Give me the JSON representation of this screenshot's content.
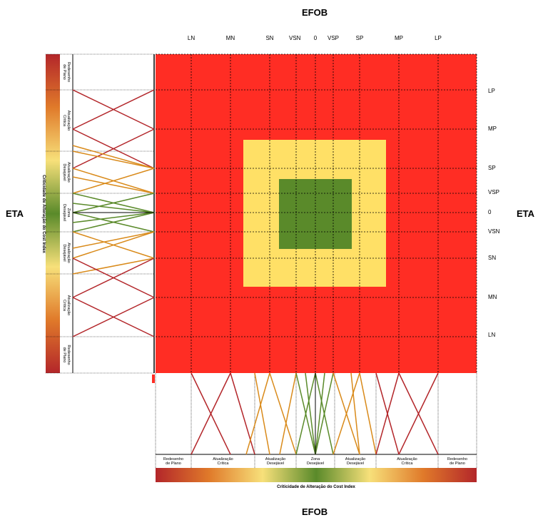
{
  "chart_data": {
    "type": "heatmap",
    "top_title": "EFOB",
    "bottom_title": "EFOB",
    "left_title": "ETA",
    "right_title": "ETA",
    "x_ticks": [
      "LN",
      "MN",
      "SN",
      "VSN",
      "0",
      "VSP",
      "SP",
      "MP",
      "LP"
    ],
    "y_ticks": [
      "LP",
      "MP",
      "SP",
      "VSP",
      "0",
      "VSN",
      "SN",
      "MN",
      "LN"
    ],
    "zones": [
      {
        "name": "Redesenho de Plano",
        "level": "red",
        "color": "#ff2d24"
      },
      {
        "name": "Atualização Desejável",
        "level": "yellow",
        "color": "#ffe066"
      },
      {
        "name": "Zona Desejável",
        "level": "green",
        "color": "#5a8a2a"
      }
    ],
    "zone_extents": {
      "yellow": {
        "x_from": "MN",
        "x_to": "MP",
        "y_from": "MN",
        "y_to": "MP"
      },
      "green": {
        "x_from": "SN",
        "x_to": "SP",
        "y_from": "SN",
        "y_to": "SP"
      }
    },
    "bottom_scale": {
      "title": "Criticidade de Alteração do Cost Index",
      "labels": [
        [
          "Redesenho",
          "de Plano"
        ],
        [
          "Atualização",
          "Crítica"
        ],
        [
          "Atualização",
          "Desejável"
        ],
        [
          "Zona",
          "Desejável"
        ],
        [
          "Atualização",
          "Desejável"
        ],
        [
          "Atualização",
          "Crítica"
        ],
        [
          "Redesenho",
          "de Plano"
        ]
      ]
    },
    "left_scale": {
      "title": "Criticidade de Alteração do Cost Index",
      "labels": [
        [
          "Redesenho",
          "de Plano"
        ],
        [
          "Atualização",
          "Crítica"
        ],
        [
          "Atualização",
          "Desejável"
        ],
        [
          "Zona",
          "Desejável"
        ],
        [
          "Atualização",
          "Desejável"
        ],
        [
          "Atualização",
          "Crítica"
        ],
        [
          "Redesenho",
          "de Plano"
        ]
      ]
    },
    "gradient_colors": [
      "#b3262a",
      "#e07a2a",
      "#f7e07a",
      "#5a8a2a",
      "#f7e07a",
      "#e07a2a",
      "#b3262a"
    ],
    "line_colors": {
      "critical": "#b3262a",
      "desirable": "#d98a1a",
      "zone": "#5a8a2a"
    },
    "grid": true
  }
}
